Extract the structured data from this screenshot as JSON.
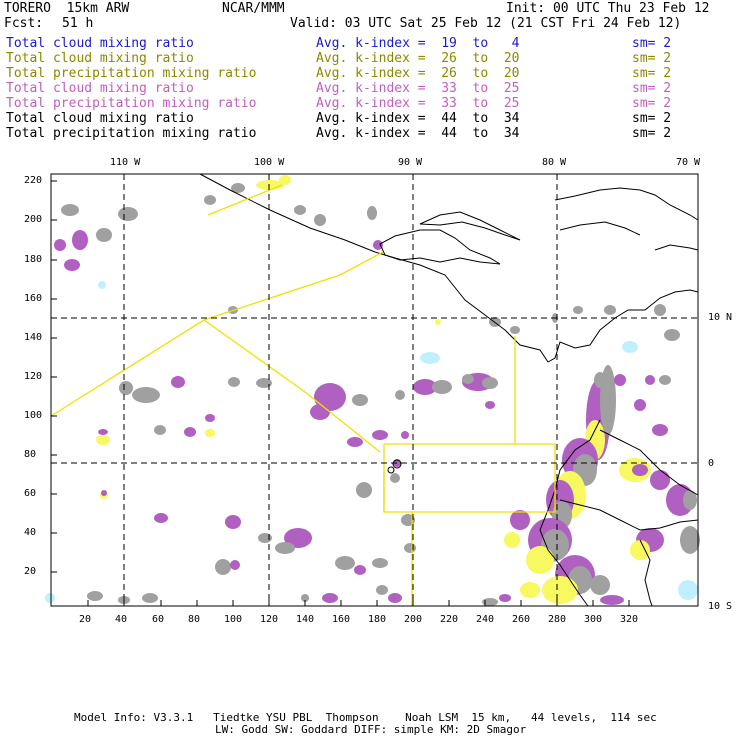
{
  "header": {
    "model": "TORERO  15km ARW",
    "org": "NCAR/MMM",
    "init": "Init: 00 UTC Thu 23 Feb 12",
    "fcst_label": "Fcst:",
    "fcst_value": "51 h",
    "valid": "Valid: 03 UTC Sat 25 Feb 12 (21 CST Fri 24 Feb 12)"
  },
  "legend": [
    {
      "field": "Total cloud mixing ratio",
      "kindex": "Avg. k-index =  19  to   4",
      "sm": "sm= 2",
      "color": "#1a1acc"
    },
    {
      "field": "Total cloud mixing ratio",
      "kindex": "Avg. k-index =  26  to  20",
      "sm": "sm= 2",
      "color": "#8a8a00"
    },
    {
      "field": "Total precipitation mixing ratio",
      "kindex": "Avg. k-index =  26  to  20",
      "sm": "sm= 2",
      "color": "#8a8a00"
    },
    {
      "field": "Total cloud mixing ratio",
      "kindex": "Avg. k-index =  33  to  25",
      "sm": "sm= 2",
      "color": "#c060c0"
    },
    {
      "field": "Total precipitation mixing ratio",
      "kindex": "Avg. k-index =  33  to  25",
      "sm": "sm= 2",
      "color": "#c060c0"
    },
    {
      "field": "Total cloud mixing ratio",
      "kindex": "Avg. k-index =  44  to  34",
      "sm": "sm= 2",
      "color": "#000000"
    },
    {
      "field": "Total precipitation mixing ratio",
      "kindex": "Avg. k-index =  44  to  34",
      "sm": "sm= 2",
      "color": "#000000"
    }
  ],
  "axes": {
    "x_ticks": [
      "20",
      "40",
      "60",
      "80",
      "100",
      "120",
      "140",
      "160",
      "180",
      "200",
      "220",
      "240",
      "260",
      "280",
      "300",
      "320"
    ],
    "y_ticks": [
      "220",
      "200",
      "180",
      "160",
      "140",
      "120",
      "100",
      "80",
      "60",
      "40",
      "20"
    ],
    "lon_labels": [
      "110 W",
      "100 W",
      "90 W",
      "80 W",
      "70 W"
    ],
    "lat_labels": [
      "10 N",
      "0",
      "10 S"
    ]
  },
  "colors": {
    "gray": "#a0a0a0",
    "purple": "#b060c0",
    "yellow": "#f8f860",
    "lightblue": "#c0f0ff",
    "boundary": "#f0e000"
  },
  "footer": {
    "line1": "Model Info: V3.3.1   Tiedtke YSU PBL  Thompson    Noah LSM  15 km,   44 levels,  114 sec",
    "line2": "LW: Godd SW: Goddard DIFF: simple KM: 2D Smagor"
  }
}
